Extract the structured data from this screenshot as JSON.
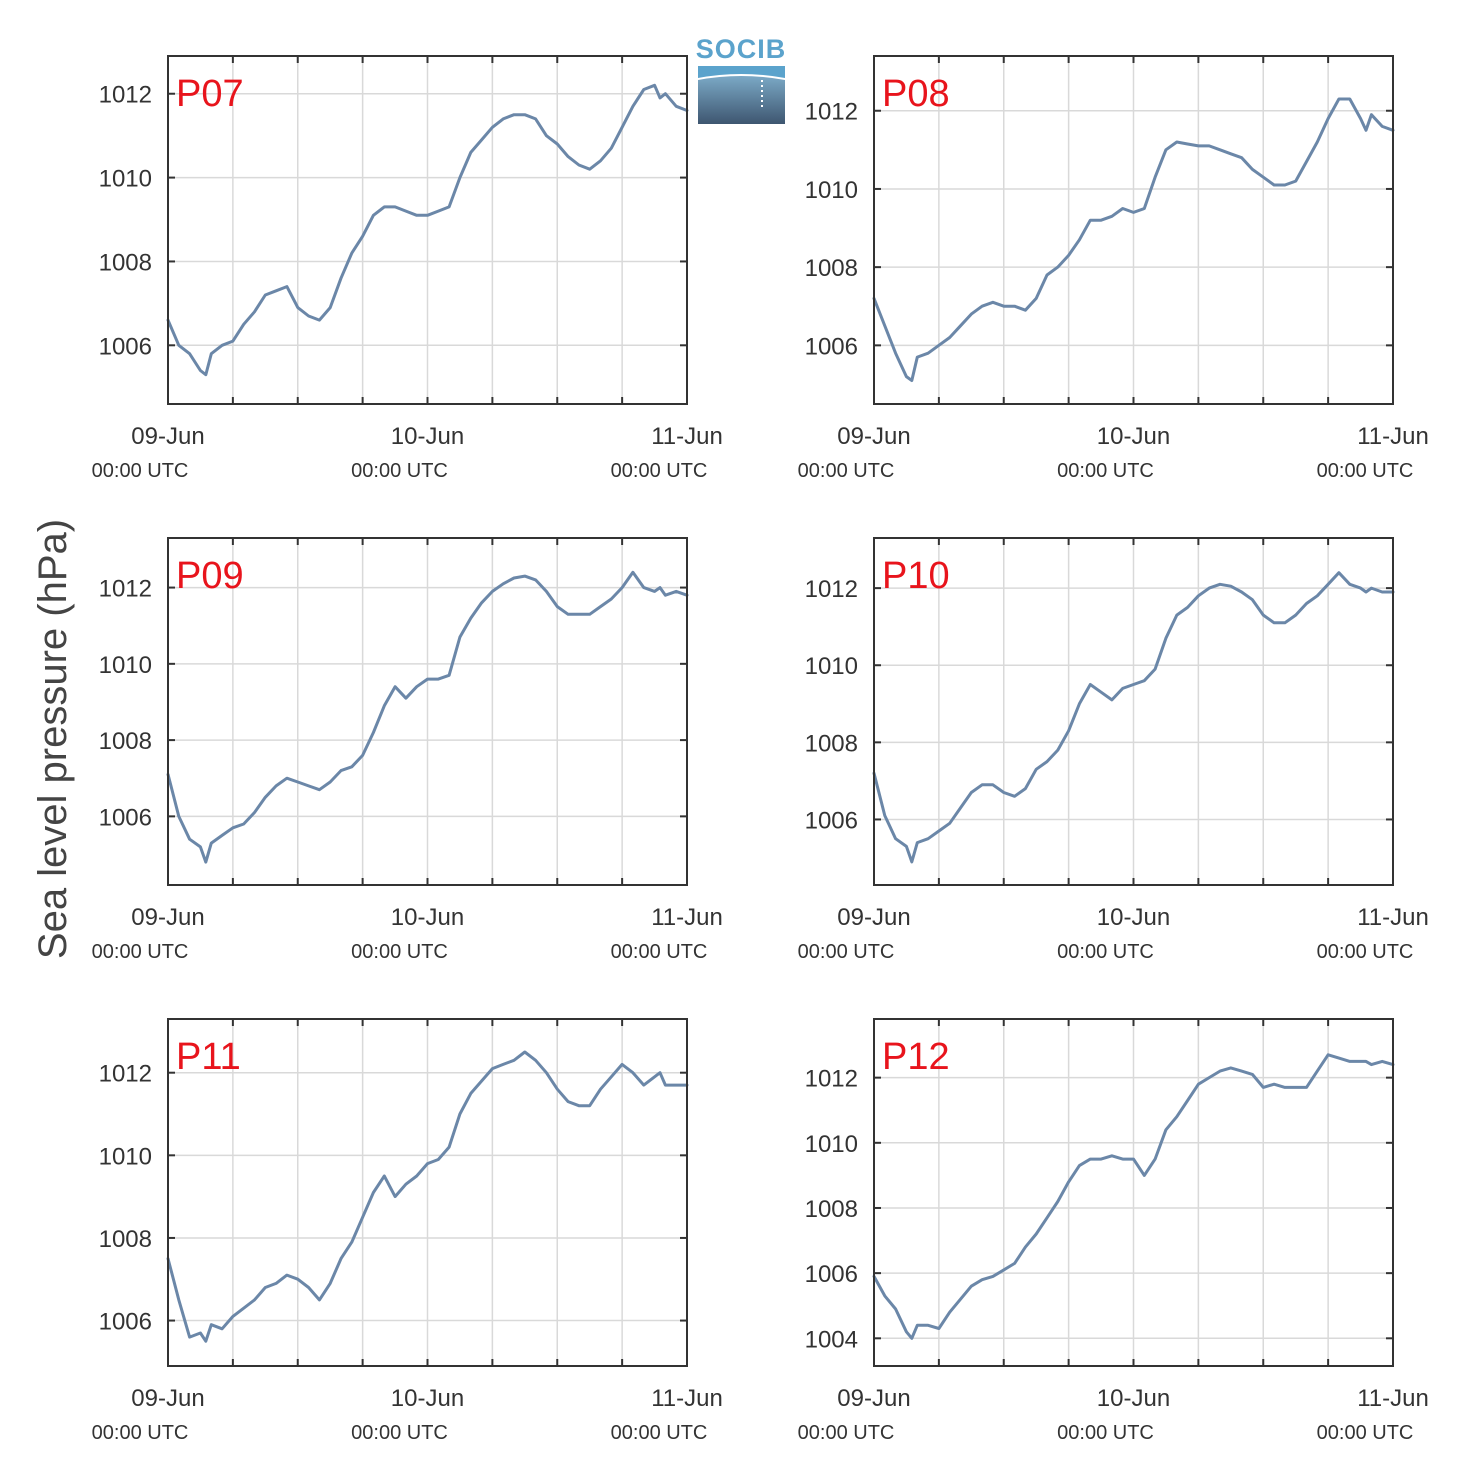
{
  "figure": {
    "ylabel": "Sea level pressure (hPa)",
    "logo_text": "SOCIB",
    "colors": {
      "series": "#6b87a8",
      "panel_label": "#e8141c",
      "logo": "#5ba3cc"
    }
  },
  "chart_data": [
    {
      "type": "line",
      "title": "P07",
      "xlim": [
        0,
        48
      ],
      "ylim": [
        1004.6,
        1012.9
      ],
      "yticks": [
        1006,
        1008,
        1010,
        1012
      ],
      "xticks": [
        {
          "x": 0,
          "label": "09-Jun",
          "sub": "00:00 UTC"
        },
        {
          "x": 24,
          "label": "10-Jun",
          "sub": "00:00 UTC"
        },
        {
          "x": 48,
          "label": "11-Jun",
          "sub": "00:00 UTC"
        }
      ],
      "x_unit": "hours since 09-Jun 00:00 UTC",
      "series": [
        {
          "x": [
            0,
            1,
            2,
            3,
            3.5,
            4,
            5,
            6,
            7,
            8,
            9,
            10,
            11,
            12,
            13,
            14,
            15,
            16,
            17,
            18,
            19,
            20,
            21,
            22,
            23,
            24,
            25,
            26,
            27,
            28,
            29,
            30,
            31,
            32,
            33,
            34,
            35,
            36,
            37,
            38,
            39,
            40,
            41,
            42,
            43,
            44,
            45,
            45.5,
            46,
            47,
            48
          ],
          "y": [
            1006.6,
            1006.0,
            1005.8,
            1005.4,
            1005.3,
            1005.8,
            1006.0,
            1006.1,
            1006.5,
            1006.8,
            1007.2,
            1007.3,
            1007.4,
            1006.9,
            1006.7,
            1006.6,
            1006.9,
            1007.6,
            1008.2,
            1008.6,
            1009.1,
            1009.3,
            1009.3,
            1009.2,
            1009.1,
            1009.1,
            1009.2,
            1009.3,
            1010.0,
            1010.6,
            1010.9,
            1011.2,
            1011.4,
            1011.5,
            1011.5,
            1011.4,
            1011.0,
            1010.8,
            1010.5,
            1010.3,
            1010.2,
            1010.4,
            1010.7,
            1011.2,
            1011.7,
            1012.1,
            1012.2,
            1011.9,
            1012.0,
            1011.7,
            1011.6
          ]
        }
      ]
    },
    {
      "type": "line",
      "title": "P08",
      "xlim": [
        0,
        48
      ],
      "ylim": [
        1004.5,
        1013.4
      ],
      "yticks": [
        1006,
        1008,
        1010,
        1012
      ],
      "xticks": [
        {
          "x": 0,
          "label": "09-Jun",
          "sub": "00:00 UTC"
        },
        {
          "x": 24,
          "label": "10-Jun",
          "sub": "00:00 UTC"
        },
        {
          "x": 48,
          "label": "11-Jun",
          "sub": "00:00 UTC"
        }
      ],
      "x_unit": "hours since 09-Jun 00:00 UTC",
      "series": [
        {
          "x": [
            0,
            1,
            2,
            3,
            3.5,
            4,
            5,
            6,
            7,
            8,
            9,
            10,
            11,
            12,
            13,
            14,
            15,
            16,
            17,
            18,
            19,
            20,
            21,
            22,
            23,
            24,
            25,
            26,
            27,
            28,
            29,
            30,
            31,
            32,
            33,
            34,
            35,
            36,
            37,
            38,
            39,
            40,
            41,
            42,
            43,
            44,
            45,
            45.5,
            46,
            47,
            48
          ],
          "y": [
            1007.2,
            1006.5,
            1005.8,
            1005.2,
            1005.1,
            1005.7,
            1005.8,
            1006.0,
            1006.2,
            1006.5,
            1006.8,
            1007.0,
            1007.1,
            1007.0,
            1007.0,
            1006.9,
            1007.2,
            1007.8,
            1008.0,
            1008.3,
            1008.7,
            1009.2,
            1009.2,
            1009.3,
            1009.5,
            1009.4,
            1009.5,
            1010.3,
            1011.0,
            1011.2,
            1011.15,
            1011.1,
            1011.1,
            1011.0,
            1010.9,
            1010.8,
            1010.5,
            1010.3,
            1010.1,
            1010.1,
            1010.2,
            1010.7,
            1011.2,
            1011.8,
            1012.3,
            1012.3,
            1011.8,
            1011.5,
            1011.9,
            1011.6,
            1011.5
          ]
        }
      ]
    },
    {
      "type": "line",
      "title": "P09",
      "xlim": [
        0,
        48
      ],
      "ylim": [
        1004.2,
        1013.3
      ],
      "yticks": [
        1006,
        1008,
        1010,
        1012
      ],
      "xticks": [
        {
          "x": 0,
          "label": "09-Jun",
          "sub": "00:00 UTC"
        },
        {
          "x": 24,
          "label": "10-Jun",
          "sub": "00:00 UTC"
        },
        {
          "x": 48,
          "label": "11-Jun",
          "sub": "00:00 UTC"
        }
      ],
      "x_unit": "hours since 09-Jun 00:00 UTC",
      "series": [
        {
          "x": [
            0,
            1,
            2,
            3,
            3.5,
            4,
            5,
            6,
            7,
            8,
            9,
            10,
            11,
            12,
            13,
            14,
            15,
            16,
            17,
            18,
            19,
            20,
            21,
            22,
            23,
            24,
            25,
            26,
            27,
            28,
            29,
            30,
            31,
            32,
            33,
            34,
            35,
            36,
            37,
            38,
            39,
            40,
            41,
            42,
            43,
            44,
            45,
            45.5,
            46,
            47,
            48
          ],
          "y": [
            1007.1,
            1006.0,
            1005.4,
            1005.2,
            1004.8,
            1005.3,
            1005.5,
            1005.7,
            1005.8,
            1006.1,
            1006.5,
            1006.8,
            1007.0,
            1006.9,
            1006.8,
            1006.7,
            1006.9,
            1007.2,
            1007.3,
            1007.6,
            1008.2,
            1008.9,
            1009.4,
            1009.1,
            1009.4,
            1009.6,
            1009.6,
            1009.7,
            1010.7,
            1011.2,
            1011.6,
            1011.9,
            1012.1,
            1012.25,
            1012.3,
            1012.2,
            1011.9,
            1011.5,
            1011.3,
            1011.3,
            1011.3,
            1011.5,
            1011.7,
            1012.0,
            1012.4,
            1012.0,
            1011.9,
            1012.0,
            1011.8,
            1011.9,
            1011.8
          ]
        }
      ]
    },
    {
      "type": "line",
      "title": "P10",
      "xlim": [
        0,
        48
      ],
      "ylim": [
        1004.3,
        1013.3
      ],
      "yticks": [
        1006,
        1008,
        1010,
        1012
      ],
      "xticks": [
        {
          "x": 0,
          "label": "09-Jun",
          "sub": "00:00 UTC"
        },
        {
          "x": 24,
          "label": "10-Jun",
          "sub": "00:00 UTC"
        },
        {
          "x": 48,
          "label": "11-Jun",
          "sub": "00:00 UTC"
        }
      ],
      "x_unit": "hours since 09-Jun 00:00 UTC",
      "series": [
        {
          "x": [
            0,
            1,
            2,
            3,
            3.5,
            4,
            5,
            6,
            7,
            8,
            9,
            10,
            11,
            12,
            13,
            14,
            15,
            16,
            17,
            18,
            19,
            20,
            21,
            22,
            23,
            24,
            25,
            26,
            27,
            28,
            29,
            30,
            31,
            32,
            33,
            34,
            35,
            36,
            37,
            38,
            39,
            40,
            41,
            42,
            43,
            44,
            45,
            45.5,
            46,
            47,
            48
          ],
          "y": [
            1007.2,
            1006.1,
            1005.5,
            1005.3,
            1004.9,
            1005.4,
            1005.5,
            1005.7,
            1005.9,
            1006.3,
            1006.7,
            1006.9,
            1006.9,
            1006.7,
            1006.6,
            1006.8,
            1007.3,
            1007.5,
            1007.8,
            1008.3,
            1009.0,
            1009.5,
            1009.3,
            1009.1,
            1009.4,
            1009.5,
            1009.6,
            1009.9,
            1010.7,
            1011.3,
            1011.5,
            1011.8,
            1012.0,
            1012.1,
            1012.05,
            1011.9,
            1011.7,
            1011.3,
            1011.1,
            1011.1,
            1011.3,
            1011.6,
            1011.8,
            1012.1,
            1012.4,
            1012.1,
            1012.0,
            1011.9,
            1012.0,
            1011.9,
            1011.9
          ]
        }
      ]
    },
    {
      "type": "line",
      "title": "P11",
      "xlim": [
        0,
        48
      ],
      "ylim": [
        1004.9,
        1013.3
      ],
      "yticks": [
        1006,
        1008,
        1010,
        1012
      ],
      "xticks": [
        {
          "x": 0,
          "label": "09-Jun",
          "sub": "00:00 UTC"
        },
        {
          "x": 24,
          "label": "10-Jun",
          "sub": "00:00 UTC"
        },
        {
          "x": 48,
          "label": "11-Jun",
          "sub": "00:00 UTC"
        }
      ],
      "x_unit": "hours since 09-Jun 00:00 UTC",
      "series": [
        {
          "x": [
            0,
            1,
            2,
            3,
            3.5,
            4,
            5,
            6,
            7,
            8,
            9,
            10,
            11,
            12,
            13,
            14,
            15,
            16,
            17,
            18,
            19,
            20,
            21,
            22,
            23,
            24,
            25,
            26,
            27,
            28,
            29,
            30,
            31,
            32,
            33,
            34,
            35,
            36,
            37,
            38,
            39,
            40,
            41,
            42,
            43,
            44,
            45,
            45.5,
            46,
            47,
            48
          ],
          "y": [
            1007.5,
            1006.5,
            1005.6,
            1005.7,
            1005.5,
            1005.9,
            1005.8,
            1006.1,
            1006.3,
            1006.5,
            1006.8,
            1006.9,
            1007.1,
            1007.0,
            1006.8,
            1006.5,
            1006.9,
            1007.5,
            1007.9,
            1008.5,
            1009.1,
            1009.5,
            1009.0,
            1009.3,
            1009.5,
            1009.8,
            1009.9,
            1010.2,
            1011.0,
            1011.5,
            1011.8,
            1012.1,
            1012.2,
            1012.3,
            1012.5,
            1012.3,
            1012.0,
            1011.6,
            1011.3,
            1011.2,
            1011.2,
            1011.6,
            1011.9,
            1012.2,
            1012.0,
            1011.7,
            1011.9,
            1012.0,
            1011.7,
            1011.7,
            1011.7
          ]
        }
      ]
    },
    {
      "type": "line",
      "title": "P12",
      "xlim": [
        0,
        48
      ],
      "ylim": [
        1003.15,
        1013.8
      ],
      "yticks": [
        1004,
        1006,
        1008,
        1010,
        1012
      ],
      "xticks": [
        {
          "x": 0,
          "label": "09-Jun",
          "sub": "00:00 UTC"
        },
        {
          "x": 24,
          "label": "10-Jun",
          "sub": "00:00 UTC"
        },
        {
          "x": 48,
          "label": "11-Jun",
          "sub": "00:00 UTC"
        }
      ],
      "x_unit": "hours since 09-Jun 00:00 UTC",
      "series": [
        {
          "x": [
            0,
            1,
            2,
            3,
            3.5,
            4,
            5,
            6,
            7,
            8,
            9,
            10,
            11,
            12,
            13,
            14,
            15,
            16,
            17,
            18,
            19,
            20,
            21,
            22,
            23,
            24,
            25,
            26,
            27,
            28,
            29,
            30,
            31,
            32,
            33,
            34,
            35,
            36,
            37,
            38,
            39,
            40,
            41,
            42,
            43,
            44,
            45,
            45.5,
            46,
            47,
            48
          ],
          "y": [
            1005.9,
            1005.3,
            1004.9,
            1004.2,
            1004.0,
            1004.4,
            1004.4,
            1004.3,
            1004.8,
            1005.2,
            1005.6,
            1005.8,
            1005.9,
            1006.1,
            1006.3,
            1006.8,
            1007.2,
            1007.7,
            1008.2,
            1008.8,
            1009.3,
            1009.5,
            1009.5,
            1009.6,
            1009.5,
            1009.5,
            1009.0,
            1009.5,
            1010.4,
            1010.8,
            1011.3,
            1011.8,
            1012.0,
            1012.2,
            1012.3,
            1012.2,
            1012.1,
            1011.7,
            1011.8,
            1011.7,
            1011.7,
            1011.7,
            1012.2,
            1012.7,
            1012.6,
            1012.5,
            1012.5,
            1012.5,
            1012.4,
            1012.5,
            1012.4
          ]
        }
      ]
    }
  ]
}
